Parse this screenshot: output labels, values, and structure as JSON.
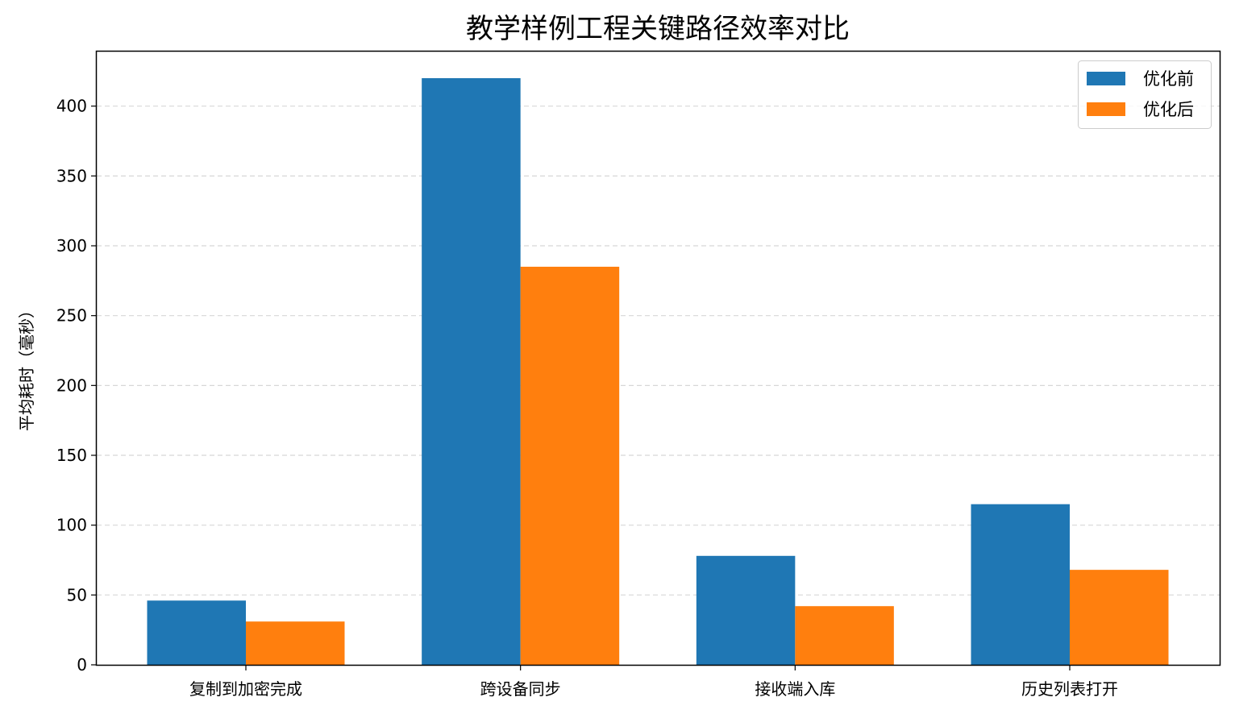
{
  "chart_data": {
    "type": "bar",
    "title": "教学样例工程关键路径效率对比",
    "xlabel": "",
    "ylabel": "平均耗时（毫秒）",
    "categories": [
      "复制到加密完成",
      "跨设备同步",
      "接收端入库",
      "历史列表打开"
    ],
    "series": [
      {
        "name": "优化前",
        "color": "#1f77b4",
        "values": [
          46,
          420,
          78,
          115
        ]
      },
      {
        "name": "优化后",
        "color": "#ff7f0e",
        "values": [
          31,
          285,
          42,
          68
        ]
      }
    ],
    "ylim": [
      0,
      420
    ],
    "yticks": [
      0,
      50,
      100,
      150,
      200,
      250,
      300,
      350,
      400
    ],
    "ytick_labels": [
      "0",
      "50",
      "100",
      "150",
      "200",
      "250",
      "300",
      "350",
      "400"
    ],
    "grid": "horizontal dashed",
    "legend_position": "top-right"
  }
}
